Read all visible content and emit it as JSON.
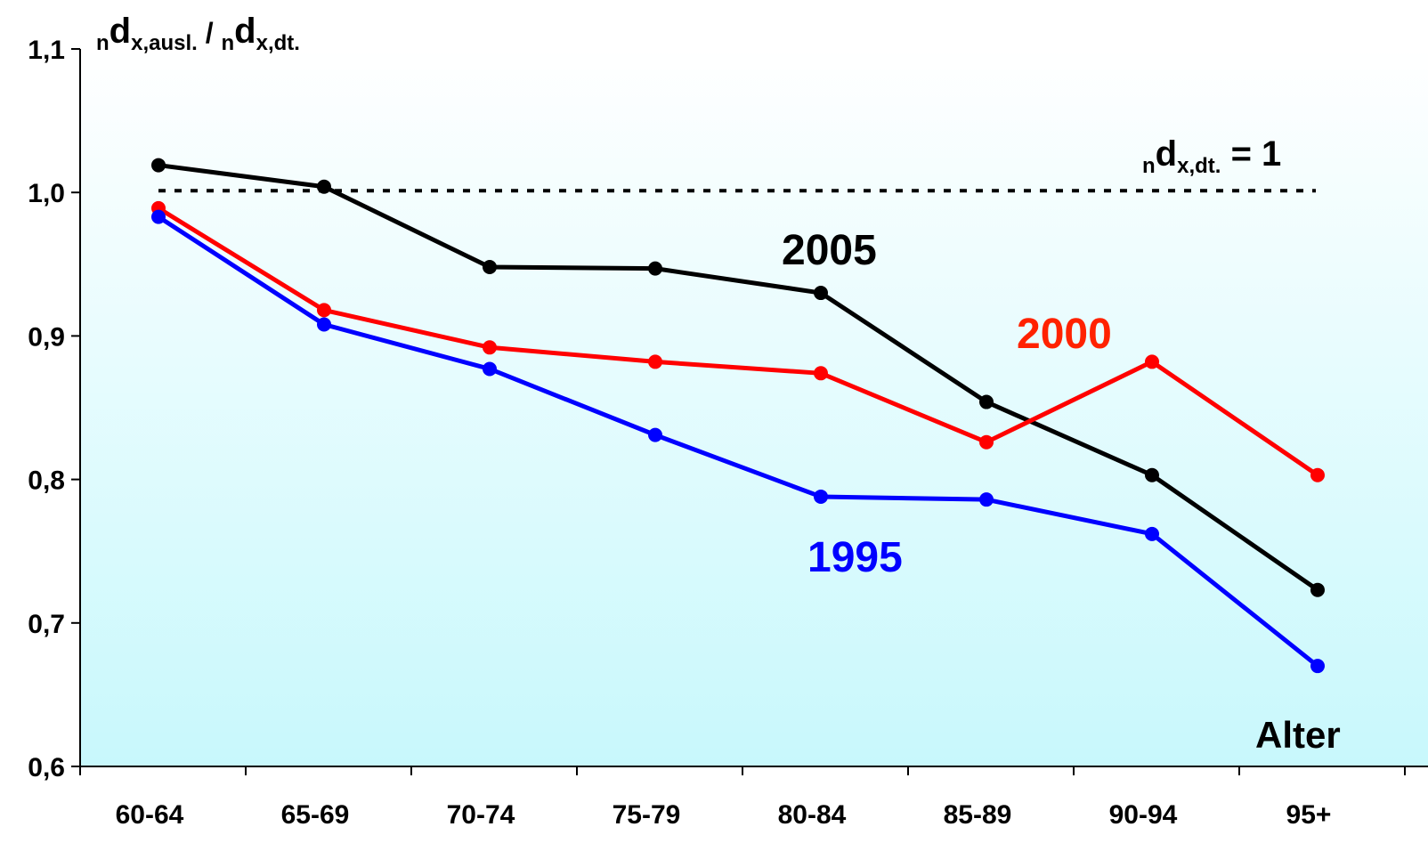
{
  "chart_data": {
    "type": "line",
    "ylabel_parts": {
      "n1": "n",
      "d1": "d",
      "sub1": "x,ausl.",
      "slash": " / ",
      "n2": "n",
      "d2": "d",
      "sub2": "x,dt."
    },
    "reference_label_parts": {
      "n": "n",
      "d": "d",
      "sub": "x,dt.",
      "rest": " = 1"
    },
    "reference_value": 1.0,
    "xlabel": "Alter",
    "categories": [
      "60-64",
      "65-69",
      "70-74",
      "75-79",
      "80-84",
      "85-89",
      "90-94",
      "95+"
    ],
    "ylim": [
      0.6,
      1.1
    ],
    "yticks": [
      "0,6",
      "0,7",
      "0,8",
      "0,9",
      "1,0",
      "1,1"
    ],
    "ytick_values": [
      0.6,
      0.7,
      0.8,
      0.9,
      1.0,
      1.1
    ],
    "grid": false,
    "series": [
      {
        "name": "2005",
        "color": "#000000",
        "values": [
          1.019,
          1.004,
          0.948,
          0.947,
          0.93,
          0.854,
          0.803,
          0.723
        ]
      },
      {
        "name": "2000",
        "color": "#ff0000",
        "label_color": "#ff2200",
        "values": [
          0.989,
          0.918,
          0.892,
          0.882,
          0.874,
          0.826,
          0.882,
          0.803
        ]
      },
      {
        "name": "1995",
        "color": "#0000ff",
        "values": [
          0.983,
          0.908,
          0.877,
          0.831,
          0.788,
          0.786,
          0.762,
          0.67
        ]
      }
    ]
  }
}
